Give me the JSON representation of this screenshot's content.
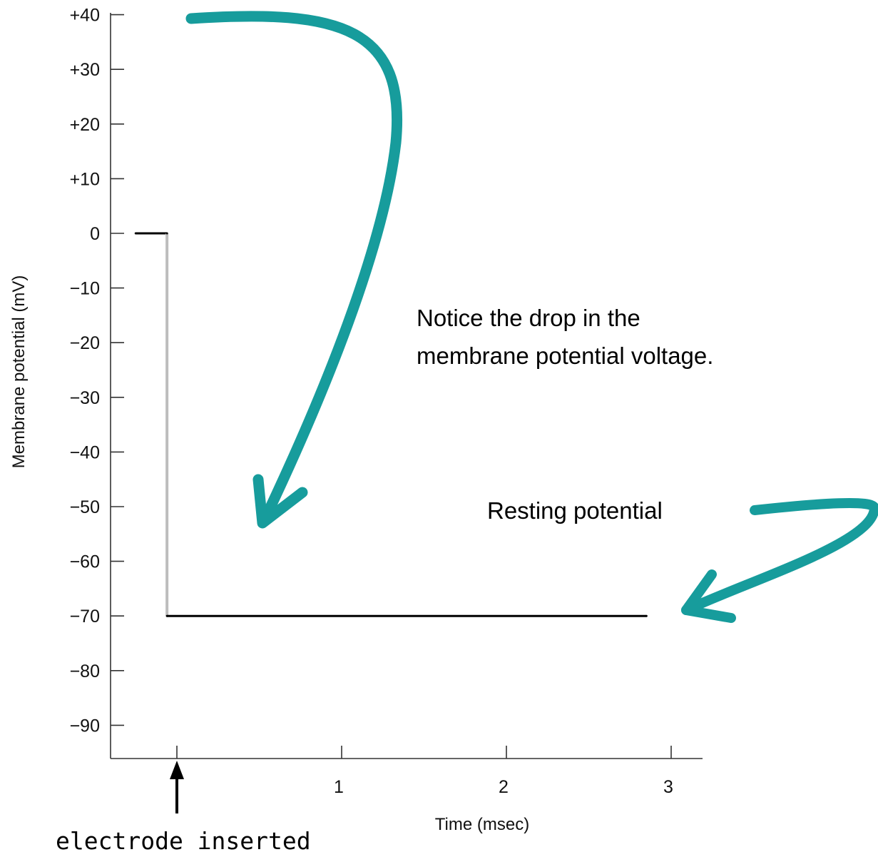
{
  "chart_data": {
    "type": "line",
    "title": "",
    "xlabel": "Time (msec)",
    "ylabel": "Membrane potential (mV)",
    "xlim": [
      -0.4,
      3.2
    ],
    "ylim": [
      -96,
      40
    ],
    "grid": false,
    "x_ticks": [
      0,
      1,
      2,
      3
    ],
    "x_tick_labels": [
      "",
      "1",
      "2",
      "3"
    ],
    "y_ticks": [
      40,
      30,
      20,
      10,
      0,
      -10,
      -20,
      -30,
      -40,
      -50,
      -60,
      -70,
      -80,
      -90
    ],
    "y_tick_labels": [
      "+40",
      "+30",
      "+20",
      "+10",
      "0",
      "−10",
      "−20",
      "−30",
      "−40",
      "−50",
      "−60",
      "−70",
      "−80",
      "−90"
    ],
    "series": [
      {
        "x": [
          -0.25,
          -0.06,
          -0.06,
          2.85
        ],
        "y": [
          0,
          0,
          -70,
          -70
        ],
        "color": "#000000"
      }
    ],
    "annotations": [
      {
        "text": "Notice the drop in the",
        "x": 1.45,
        "y": -15
      },
      {
        "text": "membrane potential voltage.",
        "x": 1.45,
        "y": -22
      },
      {
        "text": "Resting potential",
        "x": 1.87,
        "y": -52
      },
      {
        "text": "electrode inserted",
        "x": 0,
        "y": null
      }
    ]
  },
  "colors": {
    "arrow": "#179c9c",
    "drop_segment": "#bdbdbd",
    "axis": "#333333",
    "trace": "#000000"
  }
}
